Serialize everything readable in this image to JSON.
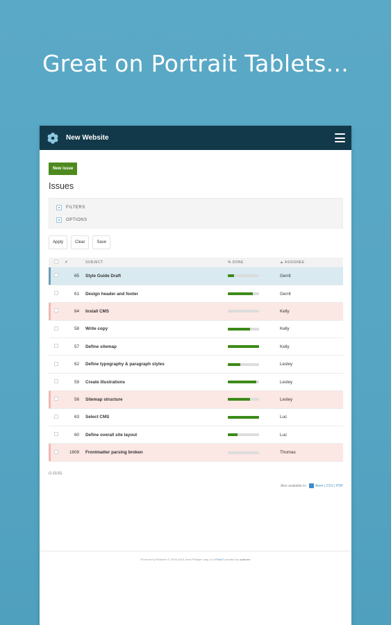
{
  "headline": "Great on Portrait Tablets...",
  "app": {
    "project_name": "New Website",
    "logo_icon": "snowflake-logo-icon",
    "menu_icon": "hamburger-menu-icon"
  },
  "toolbar": {
    "new_issue_label": "New issue"
  },
  "page": {
    "title": "Issues"
  },
  "fieldsets": [
    {
      "label": "FILTERS",
      "icon": "collapse-toggle-icon"
    },
    {
      "label": "OPTIONS",
      "icon": "collapse-toggle-icon"
    }
  ],
  "actions": {
    "apply": "Apply",
    "clear": "Clear",
    "save": "Save"
  },
  "table": {
    "headers": {
      "id": "#",
      "subject": "SUBJECT",
      "done": "% DONE",
      "assignee": "▲ ASSIGNEE"
    },
    "rows": [
      {
        "id": "65",
        "subject": "Style Guide Draft",
        "done": 20,
        "assignee": "Gerrit",
        "highlight": "selected"
      },
      {
        "id": "61",
        "subject": "Design header and footer",
        "done": 80,
        "assignee": "Gerrit",
        "highlight": ""
      },
      {
        "id": "64",
        "subject": "Install CMS",
        "done": 0,
        "assignee": "Kelly",
        "highlight": "pink"
      },
      {
        "id": "58",
        "subject": "Write copy",
        "done": 70,
        "assignee": "Kelly",
        "highlight": ""
      },
      {
        "id": "57",
        "subject": "Define sitemap",
        "done": 100,
        "assignee": "Kelly",
        "highlight": ""
      },
      {
        "id": "62",
        "subject": "Define typography & paragraph styles",
        "done": 40,
        "assignee": "Lesley",
        "highlight": ""
      },
      {
        "id": "59",
        "subject": "Create illustrations",
        "done": 90,
        "assignee": "Lesley",
        "highlight": ""
      },
      {
        "id": "56",
        "subject": "Sitemap structure",
        "done": 70,
        "assignee": "Lesley",
        "highlight": "pink"
      },
      {
        "id": "63",
        "subject": "Select CMS",
        "done": 100,
        "assignee": "Luc",
        "highlight": ""
      },
      {
        "id": "60",
        "subject": "Define overall site layout",
        "done": 30,
        "assignee": "Luc",
        "highlight": ""
      },
      {
        "id": "1608",
        "subject": "Frontmatter parsing broken",
        "done": 0,
        "assignee": "Thomas",
        "highlight": "pink"
      }
    ]
  },
  "pagination": {
    "count": "(1-11/11)"
  },
  "other_formats": {
    "prefix": "Also available in:",
    "atom": "Atom",
    "sep1": " | ",
    "csv": "CSV",
    "sep2": " | ",
    "pdf": "PDF"
  },
  "footer": {
    "text": "Powered by Redmine © 2006-2016 Jean-Philippe Lang, is a",
    "brand_link": "PlanIO",
    "suffix": "provided by",
    "company": "epitome"
  },
  "colors": {
    "topbar": "#12394a",
    "accent_green": "#4e8a1f",
    "bar_fill": "#3c8a18",
    "row_selected": "#d9eaf0",
    "row_pink": "#fbe7e4",
    "background": "#5aa9c6"
  }
}
